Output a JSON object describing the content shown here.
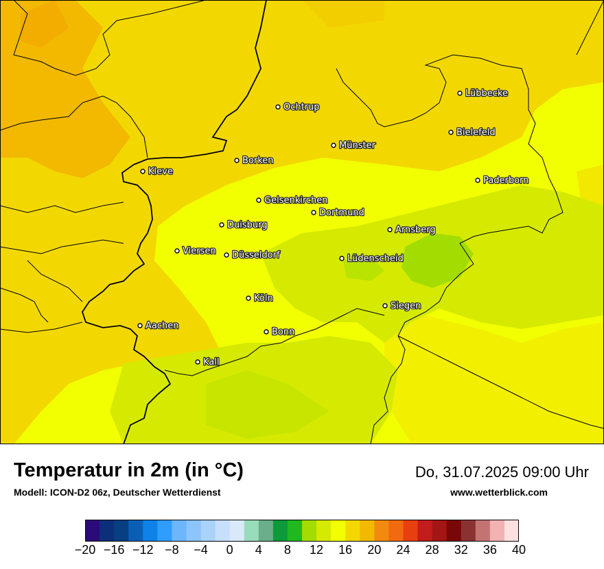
{
  "map": {
    "cities": [
      {
        "name": "Lübbecke"
      },
      {
        "name": "Ochtrup"
      },
      {
        "name": "Bielefeld"
      },
      {
        "name": "Münster"
      },
      {
        "name": "Borken"
      },
      {
        "name": "Kleve"
      },
      {
        "name": "Paderborn"
      },
      {
        "name": "Gelsenkirchen"
      },
      {
        "name": "Dortmund"
      },
      {
        "name": "Duisburg"
      },
      {
        "name": "Arnsberg"
      },
      {
        "name": "Viersen"
      },
      {
        "name": "Düsseldorf"
      },
      {
        "name": "Lüdenscheid"
      },
      {
        "name": "Köln"
      },
      {
        "name": "Siegen"
      },
      {
        "name": "Aachen"
      },
      {
        "name": "Bonn"
      },
      {
        "name": "Kall"
      }
    ]
  },
  "footer": {
    "title": "Temperatur in 2m (in °C)",
    "subtitle": "Modell: ICON-D2 06z, Deutscher Wetterdienst",
    "datetime": "Do, 31.07.2025 09:00 Uhr",
    "website": "www.wetterblick.com"
  },
  "legend": {
    "min": -20,
    "max": 40,
    "step": 2,
    "colors": [
      "#2b0a7a",
      "#0b2f7a",
      "#073f82",
      "#0a5fb5",
      "#0f82e8",
      "#2f9dfc",
      "#6db6fb",
      "#8cc4fb",
      "#a9d3fb",
      "#c6e0fb",
      "#dae9fa",
      "#99dcbb",
      "#6aae8c",
      "#0c9a3a",
      "#1fb81f",
      "#a3dc00",
      "#d5ea00",
      "#f2ff00",
      "#f2d800",
      "#f2b900",
      "#f28a10",
      "#f26a10",
      "#e83f10",
      "#c21c1c",
      "#a41515",
      "#7a0707",
      "#8a3232",
      "#c47373",
      "#f2b2b2",
      "#ffe0e0"
    ],
    "tick_labels": [
      "−20",
      "−16",
      "−12",
      "−8",
      "−4",
      "0",
      "4",
      "8",
      "12",
      "16",
      "20",
      "24",
      "28",
      "32",
      "36",
      "40"
    ]
  }
}
